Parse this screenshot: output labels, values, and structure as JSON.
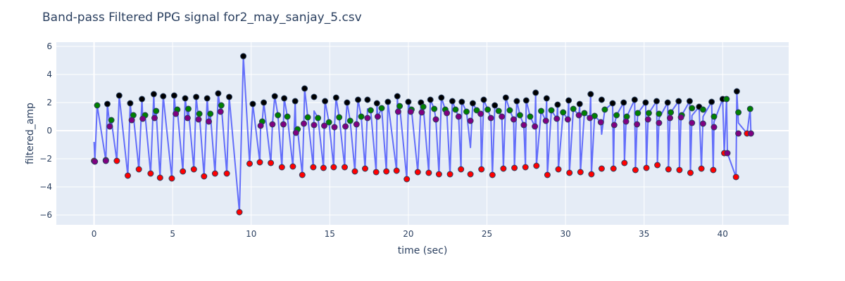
{
  "chart_data": {
    "type": "line",
    "title": "Band-pass Filtered PPG signal for2_may_sanjay_5.csv",
    "xlabel": "time (sec)",
    "ylabel": "filtered_amp",
    "xlim": [
      -2.4,
      44.2
    ],
    "ylim": [
      -6.7,
      6.3
    ],
    "x_ticks": [
      0,
      5,
      10,
      15,
      20,
      25,
      30,
      35,
      40
    ],
    "y_ticks": [
      -6,
      -4,
      -2,
      0,
      2,
      4,
      6
    ],
    "grid": true,
    "legend": "none",
    "colors": {
      "plot_bg": "#e5ecf6",
      "grid": "#ffffff",
      "signal": "#636efa",
      "systolic_peak": "#000000",
      "onset_trough": "#ff0000",
      "diastolic_peak": "#008000",
      "dicrotic_notch": "#800080",
      "marker_outline": "#2a3f5f"
    },
    "series": [
      {
        "role": "systolic_peak",
        "color": "#000000",
        "x": [
          0.85,
          1.6,
          2.3,
          3.05,
          3.8,
          4.4,
          5.1,
          5.8,
          6.5,
          7.2,
          7.9,
          8.6,
          9.5,
          10.1,
          10.8,
          11.5,
          12.1,
          12.8,
          13.4,
          14.0,
          14.7,
          15.4,
          16.1,
          16.8,
          17.4,
          18.0,
          18.7,
          19.3,
          20.0,
          20.8,
          21.4,
          22.1,
          22.8,
          23.4,
          24.1,
          24.8,
          25.5,
          26.2,
          26.9,
          27.5,
          28.1,
          28.8,
          29.5,
          30.2,
          30.9,
          31.6,
          32.3,
          33.0,
          33.7,
          34.4,
          35.1,
          35.8,
          36.5,
          37.2,
          37.9,
          38.5,
          39.3,
          40.0,
          40.9
        ],
        "values": [
          1.9,
          2.5,
          1.95,
          2.25,
          2.6,
          2.45,
          2.5,
          2.3,
          2.4,
          2.3,
          2.65,
          2.4,
          5.3,
          1.9,
          2.0,
          2.45,
          2.3,
          2.1,
          3.0,
          2.4,
          2.1,
          2.35,
          2.0,
          2.2,
          2.2,
          1.95,
          2.05,
          2.45,
          2.05,
          2.0,
          2.2,
          2.35,
          2.1,
          2.05,
          1.95,
          2.2,
          1.8,
          2.35,
          2.1,
          2.15,
          2.7,
          2.3,
          1.85,
          2.15,
          1.9,
          2.6,
          2.2,
          1.95,
          2.0,
          2.2,
          2.0,
          2.1,
          2.0,
          2.1,
          2.1,
          1.7,
          2.05,
          2.25,
          2.8
        ]
      },
      {
        "role": "onset_trough",
        "color": "#ff0000",
        "x": [
          0.0,
          0.75,
          1.45,
          2.15,
          2.85,
          3.6,
          4.2,
          4.95,
          5.65,
          6.35,
          7.0,
          7.7,
          8.45,
          9.25,
          9.9,
          10.55,
          11.25,
          11.95,
          12.65,
          13.25,
          13.95,
          14.6,
          15.25,
          15.95,
          16.6,
          17.25,
          17.95,
          18.6,
          19.25,
          19.9,
          20.6,
          21.3,
          21.95,
          22.65,
          23.35,
          23.95,
          24.65,
          25.35,
          26.05,
          26.75,
          27.45,
          28.15,
          28.85,
          29.55,
          30.25,
          30.95,
          31.65,
          32.3,
          33.05,
          33.75,
          34.45,
          35.15,
          35.85,
          36.55,
          37.25,
          37.95,
          38.65,
          39.4,
          40.1,
          40.85,
          41.55
        ],
        "values": [
          -2.15,
          -2.1,
          -2.15,
          -3.2,
          -2.75,
          -3.05,
          -3.35,
          -3.4,
          -2.9,
          -2.75,
          -3.25,
          -3.05,
          -3.05,
          -5.8,
          -2.35,
          -2.25,
          -2.3,
          -2.6,
          -2.55,
          -3.15,
          -2.6,
          -2.65,
          -2.6,
          -2.6,
          -2.9,
          -2.7,
          -2.95,
          -2.9,
          -2.85,
          -3.45,
          -2.95,
          -3.0,
          -3.1,
          -3.1,
          -2.75,
          -3.1,
          -2.75,
          -3.15,
          -2.7,
          -2.65,
          -2.6,
          -2.5,
          -3.15,
          -2.75,
          -3.0,
          -2.95,
          -3.1,
          -2.7,
          -2.7,
          -2.3,
          -2.8,
          -2.65,
          -2.45,
          -2.75,
          -2.8,
          -3.0,
          -2.7,
          -2.8,
          -1.6,
          -3.3,
          -0.2
        ]
      },
      {
        "role": "diastolic_peak",
        "color": "#008000",
        "x": [
          0.2,
          1.1,
          2.5,
          3.25,
          3.95,
          5.3,
          6.0,
          6.7,
          7.4,
          8.1,
          10.7,
          11.7,
          12.3,
          12.95,
          13.6,
          14.25,
          14.95,
          15.6,
          16.3,
          17.0,
          17.6,
          18.3,
          19.45,
          20.2,
          20.95,
          21.65,
          22.35,
          23.0,
          23.7,
          24.35,
          25.05,
          25.75,
          26.45,
          27.1,
          27.75,
          28.45,
          29.1,
          29.85,
          30.5,
          31.2,
          31.85,
          32.5,
          33.25,
          33.9,
          34.6,
          35.3,
          35.95,
          36.7,
          37.4,
          38.05,
          38.75,
          39.45,
          40.25,
          41.0,
          41.75
        ],
        "values": [
          1.8,
          0.75,
          1.1,
          1.1,
          1.4,
          1.5,
          1.55,
          1.2,
          1.2,
          1.8,
          0.65,
          1.1,
          1.0,
          0.1,
          0.95,
          0.9,
          0.6,
          0.95,
          0.7,
          1.0,
          1.45,
          1.6,
          1.75,
          1.5,
          1.7,
          1.55,
          1.5,
          1.5,
          1.35,
          1.45,
          1.5,
          1.4,
          1.45,
          1.1,
          1.0,
          1.4,
          1.45,
          1.3,
          1.55,
          1.25,
          1.05,
          1.5,
          1.1,
          1.0,
          1.25,
          1.25,
          1.2,
          1.3,
          1.1,
          1.6,
          1.5,
          1.0,
          2.25,
          1.3,
          1.55
        ]
      },
      {
        "role": "dicrotic_notch",
        "color": "#800080",
        "x": [
          0.05,
          0.75,
          1.0,
          2.4,
          3.1,
          3.85,
          5.2,
          5.95,
          6.65,
          7.3,
          8.05,
          10.6,
          11.35,
          12.05,
          12.85,
          13.35,
          14.0,
          14.65,
          15.3,
          16.0,
          16.7,
          17.4,
          18.05,
          19.35,
          20.15,
          20.85,
          21.75,
          22.45,
          23.2,
          23.95,
          24.6,
          25.25,
          25.95,
          26.7,
          27.35,
          28.05,
          28.75,
          29.45,
          30.15,
          30.85,
          31.55,
          32.25,
          33.1,
          33.85,
          34.55,
          35.25,
          35.95,
          36.65,
          37.35,
          38.05,
          38.75,
          39.45,
          40.3,
          41.0,
          41.8
        ],
        "values": [
          -2.2,
          -2.15,
          0.3,
          0.75,
          0.85,
          0.9,
          1.2,
          0.9,
          0.8,
          0.65,
          1.35,
          0.35,
          0.45,
          0.45,
          -0.15,
          0.5,
          0.4,
          0.35,
          0.25,
          0.3,
          0.45,
          0.9,
          1.0,
          1.35,
          1.35,
          1.3,
          0.8,
          1.25,
          1.0,
          0.7,
          1.2,
          0.9,
          1.0,
          0.8,
          0.4,
          0.3,
          0.7,
          0.85,
          0.8,
          1.1,
          0.9,
          0.6,
          0.4,
          0.65,
          0.45,
          0.8,
          0.55,
          0.9,
          0.95,
          0.55,
          0.5,
          0.25,
          -1.6,
          -0.2,
          -0.2
        ]
      }
    ]
  }
}
